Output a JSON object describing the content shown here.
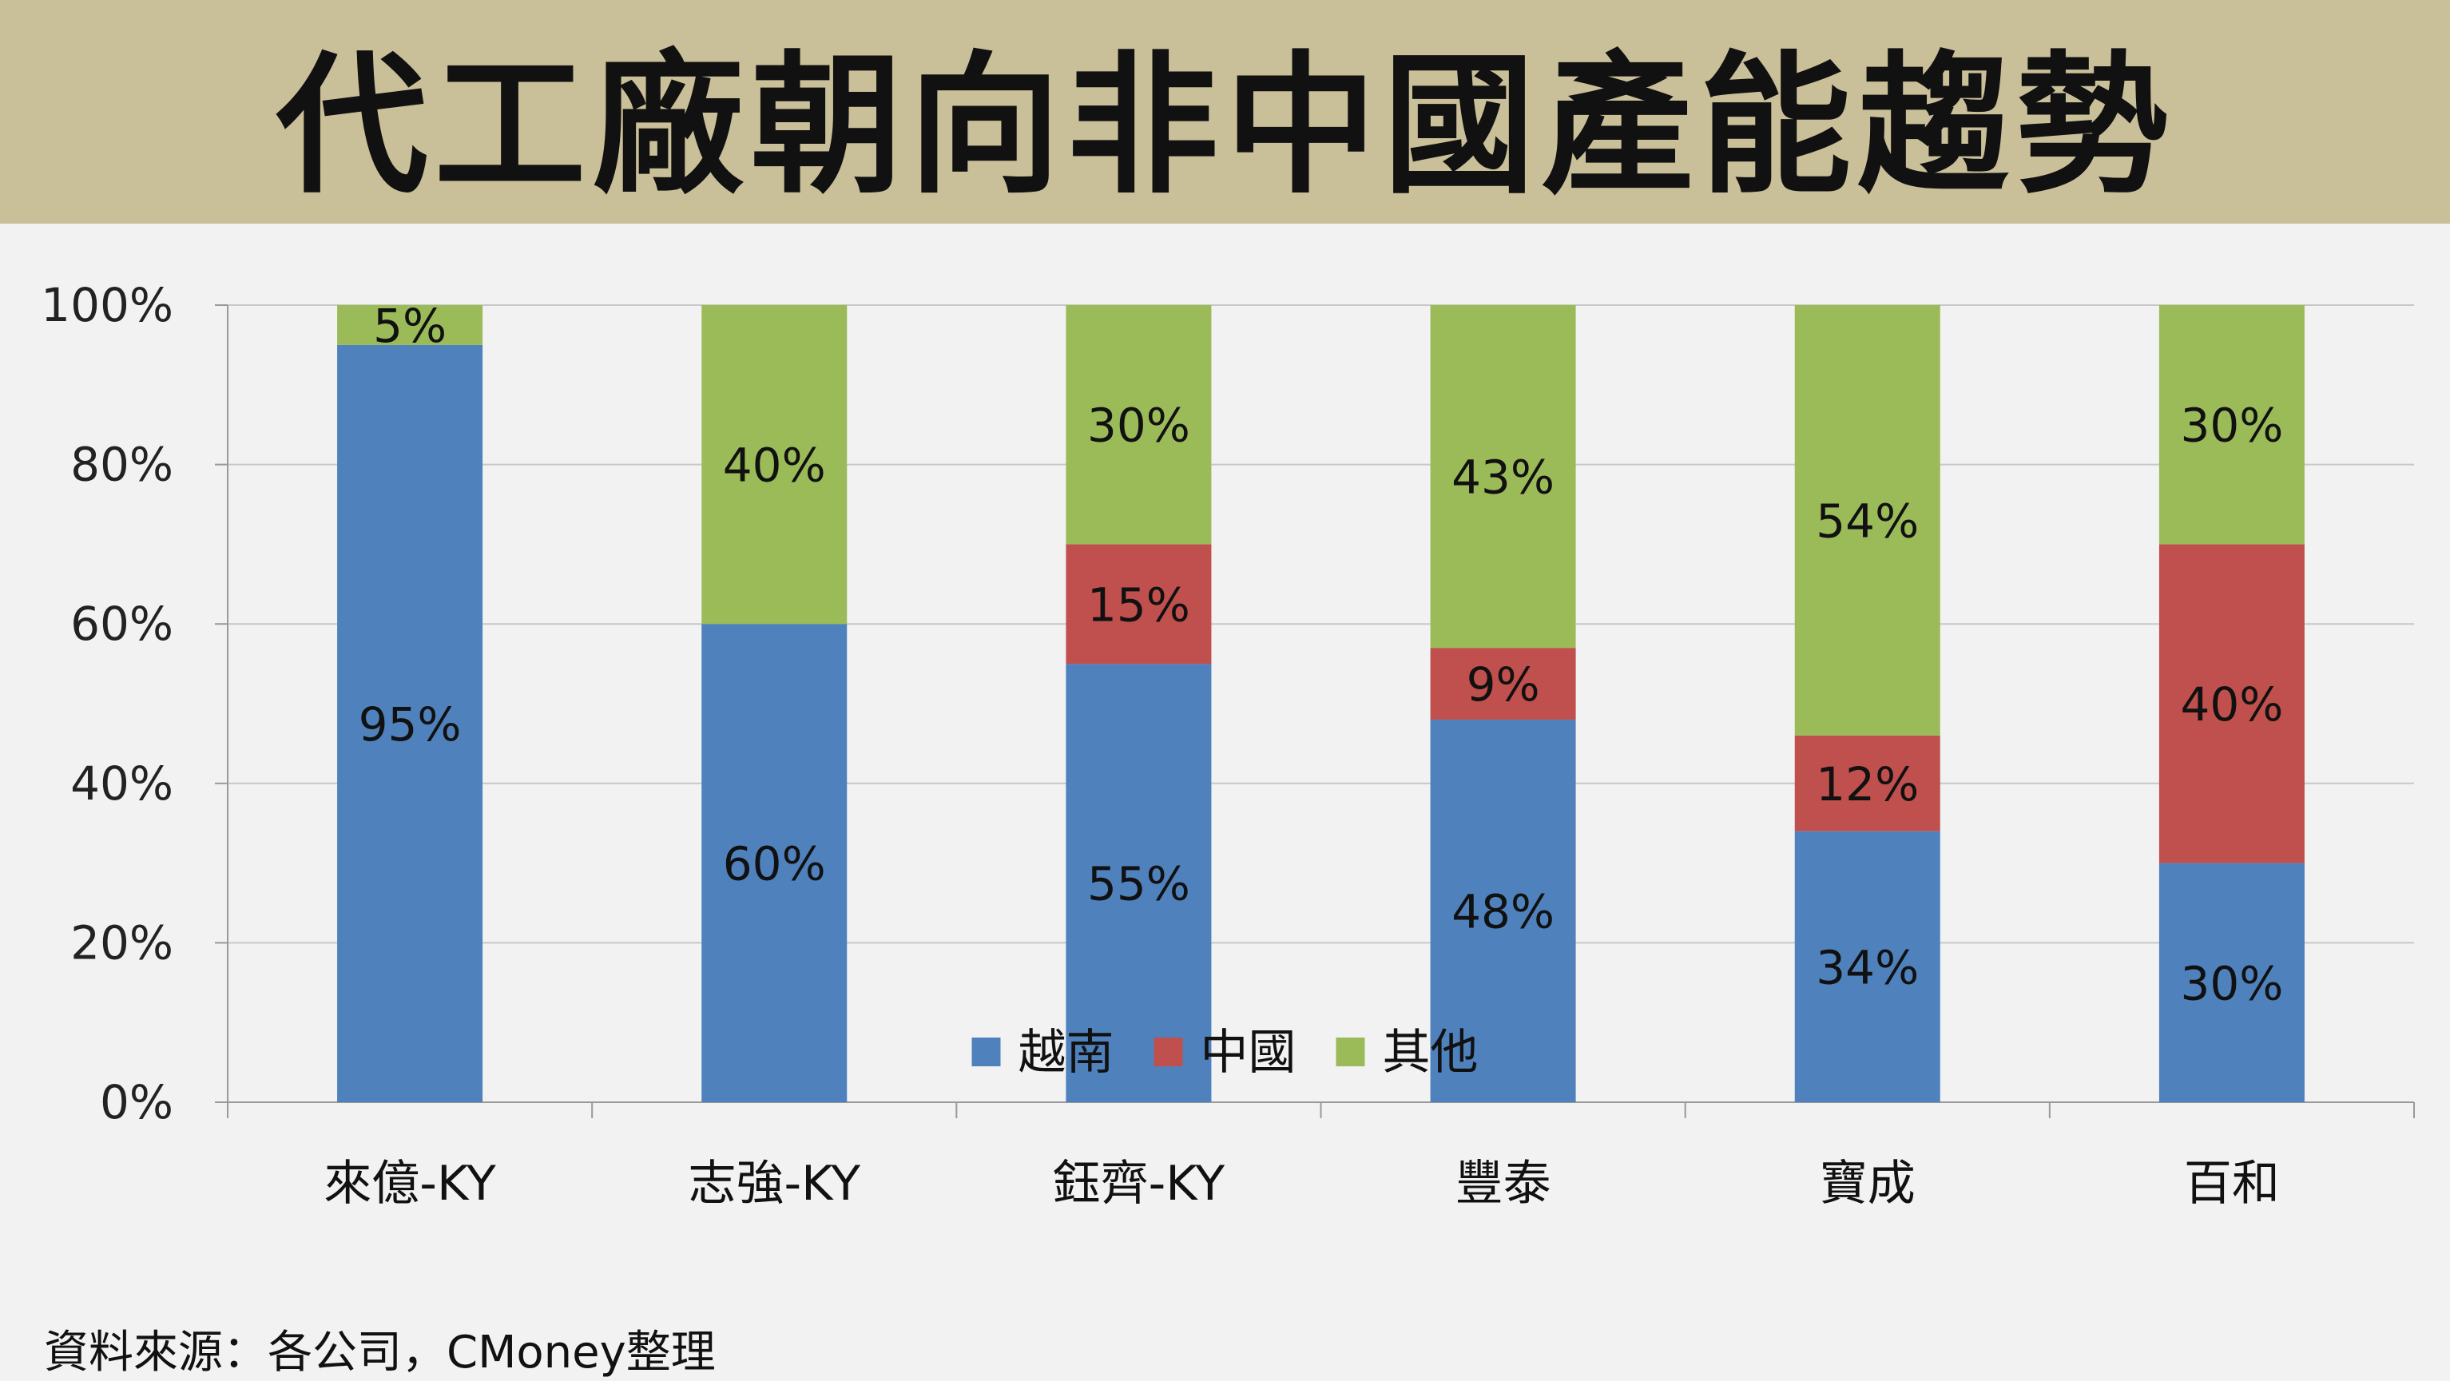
{
  "title": "代工廠朝向非中國產能趨勢",
  "source": "資料來源：各公司，CMoney整理",
  "colors": {
    "越南": "#4f81bd",
    "中國": "#c0504d",
    "其他": "#9bbb59"
  },
  "chart_data": {
    "type": "bar",
    "stacked": true,
    "categories": [
      "來億-KY",
      "志強-KY",
      "鈺齊-KY",
      "豐泰",
      "寶成",
      "百和"
    ],
    "series": [
      {
        "name": "越南",
        "values": [
          95,
          60,
          55,
          48,
          34,
          30
        ],
        "labels": [
          "95%",
          "60%",
          "55%",
          "48%",
          "34%",
          "30%"
        ]
      },
      {
        "name": "中國",
        "values": [
          0,
          0,
          15,
          9,
          12,
          40
        ],
        "labels": [
          "",
          "",
          "15%",
          "9%",
          "12%",
          "40%"
        ]
      },
      {
        "name": "其他",
        "values": [
          5,
          40,
          30,
          43,
          54,
          30
        ],
        "labels": [
          "5%",
          "40%",
          "30%",
          "43%",
          "54%",
          "30%"
        ]
      }
    ],
    "ylim": [
      0,
      100
    ],
    "yticks": [
      "0%",
      "20%",
      "40%",
      "60%",
      "80%",
      "100%"
    ],
    "grid": true,
    "legend": "bottom"
  }
}
